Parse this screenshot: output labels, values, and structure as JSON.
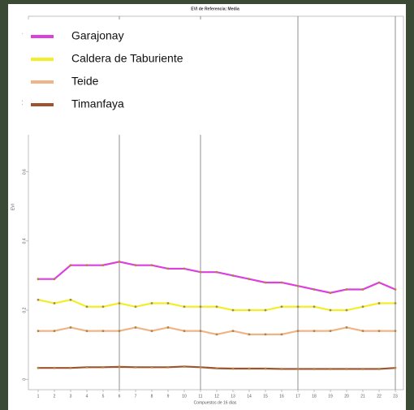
{
  "chart_data": {
    "type": "line",
    "title": "EVI de Referencia: Media",
    "xlabel": "Compuestos de 16 días",
    "ylabel": "EVI",
    "x": [
      1,
      2,
      3,
      4,
      5,
      6,
      7,
      8,
      9,
      10,
      11,
      12,
      13,
      14,
      15,
      16,
      17,
      18,
      19,
      20,
      21,
      22,
      23
    ],
    "xlim": [
      0.4,
      23.5
    ],
    "xticks": [
      1,
      2,
      3,
      4,
      5,
      6,
      7,
      8,
      9,
      10,
      11,
      12,
      13,
      14,
      15,
      16,
      17,
      18,
      19,
      20,
      21,
      22,
      23
    ],
    "ylim": [
      -0.03,
      1.05
    ],
    "yticks": [
      0,
      0.2,
      0.4,
      0.6,
      0.8,
      1
    ],
    "vlines": [
      6,
      11,
      17,
      23
    ],
    "legend": "upper left",
    "series": [
      {
        "name": "Garajonay",
        "color": "#dd3fdd",
        "values": [
          0.29,
          0.29,
          0.33,
          0.33,
          0.33,
          0.34,
          0.33,
          0.33,
          0.32,
          0.32,
          0.31,
          0.31,
          0.3,
          0.29,
          0.28,
          0.28,
          0.27,
          0.26,
          0.25,
          0.26,
          0.26,
          0.28,
          0.26
        ]
      },
      {
        "name": "Caldera de Taburiente",
        "color": "#f2ee2a",
        "values": [
          0.23,
          0.22,
          0.23,
          0.21,
          0.21,
          0.22,
          0.21,
          0.22,
          0.22,
          0.21,
          0.21,
          0.21,
          0.2,
          0.2,
          0.2,
          0.21,
          0.21,
          0.21,
          0.2,
          0.2,
          0.21,
          0.22,
          0.22
        ]
      },
      {
        "name": "Teide",
        "color": "#f0b488",
        "values": [
          0.14,
          0.14,
          0.15,
          0.14,
          0.14,
          0.14,
          0.15,
          0.14,
          0.15,
          0.14,
          0.14,
          0.13,
          0.14,
          0.13,
          0.13,
          0.13,
          0.14,
          0.14,
          0.14,
          0.15,
          0.14,
          0.14,
          0.14
        ]
      },
      {
        "name": "Timanfaya",
        "color": "#a0522d",
        "values": [
          0.033,
          0.033,
          0.033,
          0.035,
          0.035,
          0.036,
          0.035,
          0.035,
          0.035,
          0.037,
          0.035,
          0.032,
          0.031,
          0.031,
          0.031,
          0.03,
          0.03,
          0.03,
          0.03,
          0.03,
          0.03,
          0.03,
          0.033
        ]
      }
    ]
  }
}
